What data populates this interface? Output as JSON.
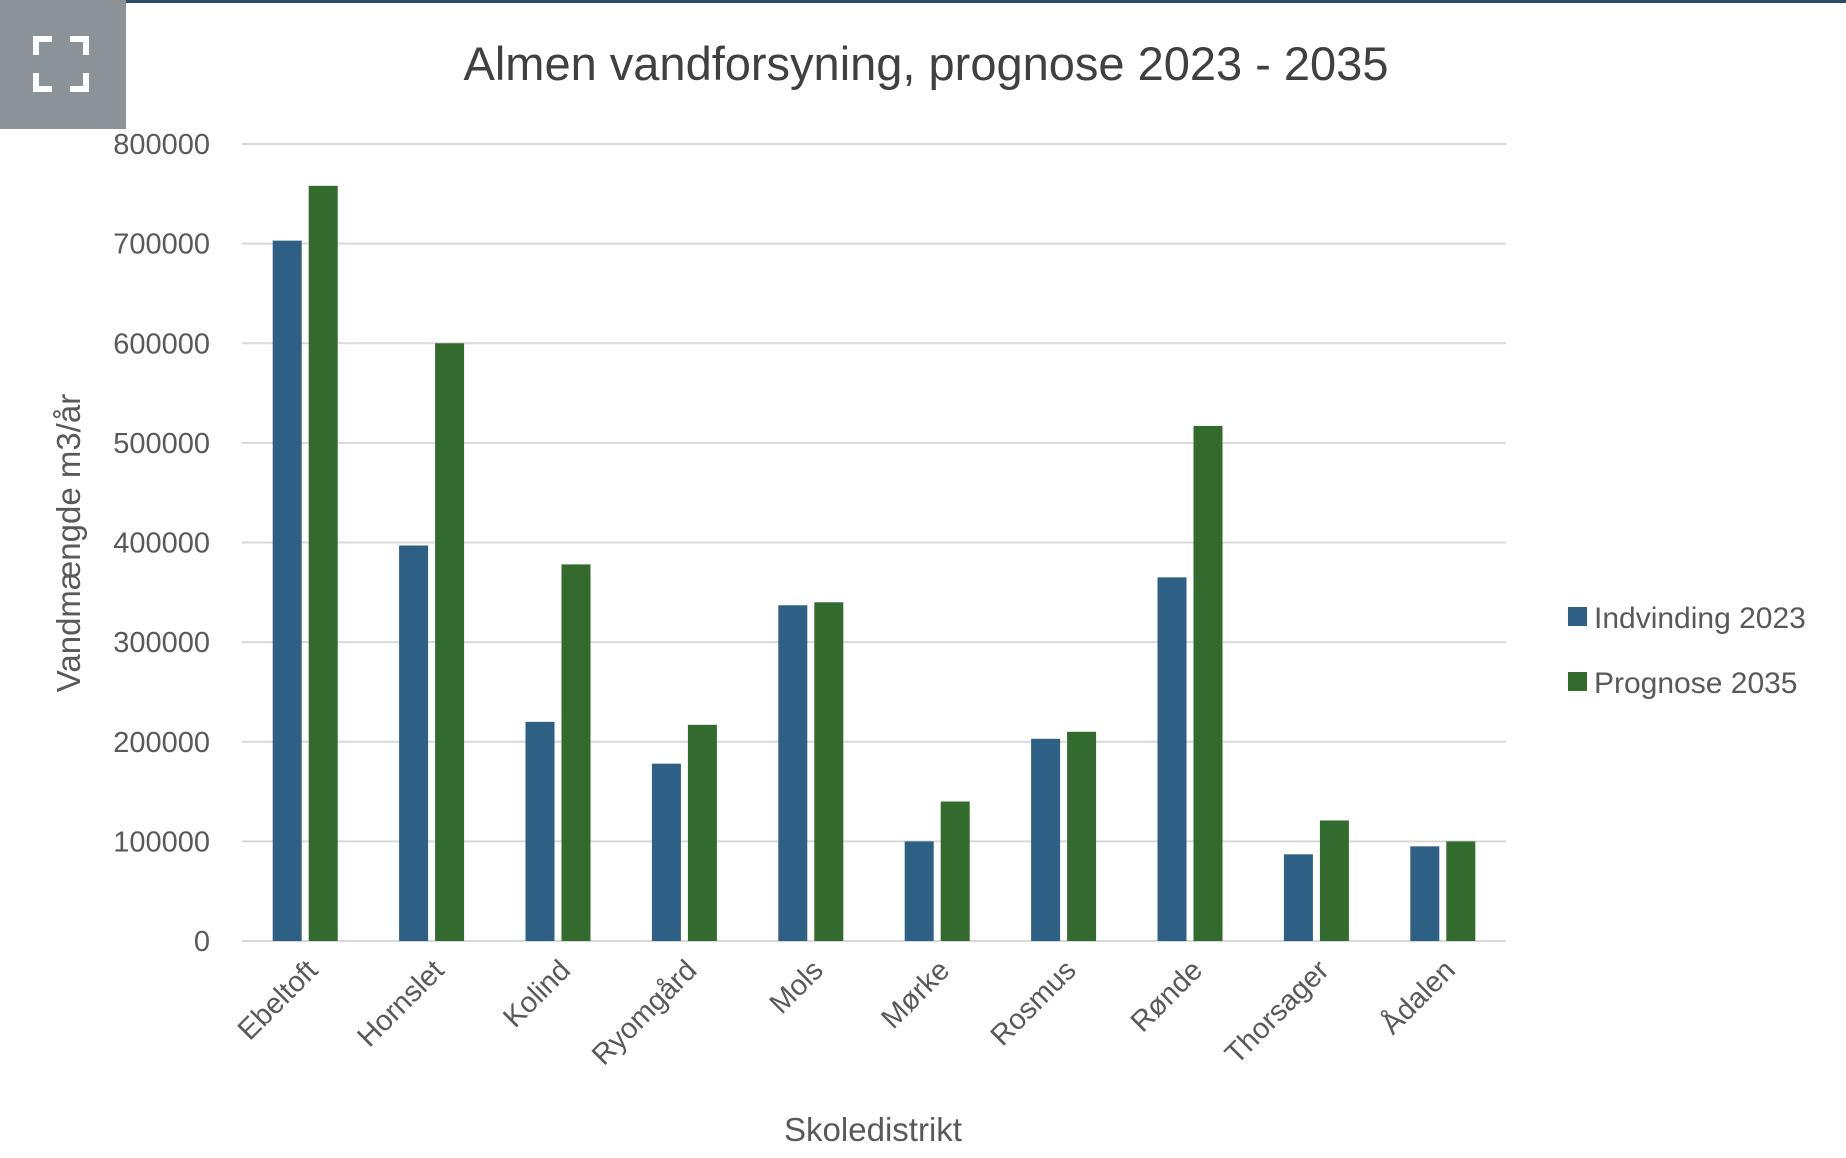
{
  "fullscreen_icon": "fullscreen-icon",
  "colors": {
    "series1": "#2e5f84",
    "series2": "#336b2e",
    "grid": "#d9d9d9",
    "text": "#595959",
    "title": "#404040",
    "button": "#8c9398"
  },
  "chart_data": {
    "type": "bar",
    "title": "Almen vandforsyning, prognose 2023 - 2035",
    "xlabel": "Skoledistrikt",
    "ylabel": "Vandmængde m3/år",
    "ylim": [
      0,
      800000
    ],
    "yticks": [
      "0",
      "100000",
      "200000",
      "300000",
      "400000",
      "500000",
      "600000",
      "700000",
      "800000"
    ],
    "grid": true,
    "legend_position": "right",
    "categories": [
      "Ebeltoft",
      "Hornslet",
      "Kolind",
      "Ryomgård",
      "Mols",
      "Mørke",
      "Rosmus",
      "Rønde",
      "Thorsager",
      "Ådalen"
    ],
    "series": [
      {
        "name": "Indvinding 2023",
        "values": [
          703000,
          397000,
          220000,
          178000,
          337000,
          100000,
          203000,
          365000,
          87000,
          95000
        ]
      },
      {
        "name": "Prognose 2035",
        "values": [
          758000,
          600000,
          378000,
          217000,
          340000,
          140000,
          210000,
          517000,
          121000,
          100000
        ]
      }
    ]
  }
}
